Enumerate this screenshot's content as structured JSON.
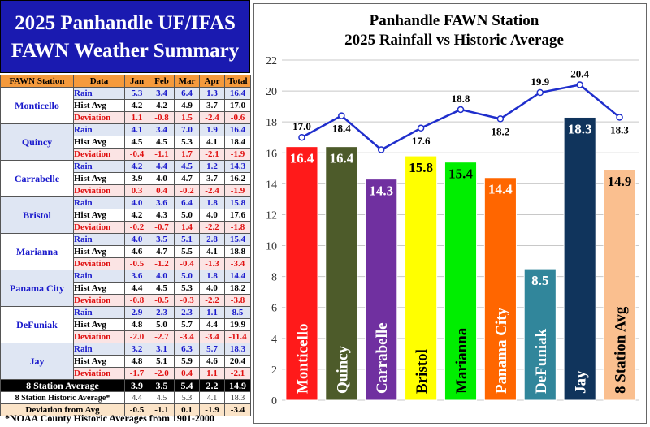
{
  "summary": {
    "title_line1": "2025 Panhandle UF/IFAS",
    "title_line2": "FAWN Weather Summary",
    "columns": [
      "FAWN Station",
      "Data",
      "Jan",
      "Feb",
      "Mar",
      "Apr",
      "Total"
    ],
    "row_labels": [
      "Rain",
      "Hist Avg",
      "Deviation"
    ],
    "stations": [
      {
        "name": "Monticello",
        "rain": [
          "5.3",
          "3.4",
          "6.4",
          "1.3",
          "16.4"
        ],
        "hist": [
          "4.2",
          "4.2",
          "4.9",
          "3.7",
          "17.0"
        ],
        "dev": [
          "1.1",
          "-0.8",
          "1.5",
          "-2.4",
          "-0.6"
        ]
      },
      {
        "name": "Quincy",
        "rain": [
          "4.1",
          "3.4",
          "7.0",
          "1.9",
          "16.4"
        ],
        "hist": [
          "4.5",
          "4.5",
          "5.3",
          "4.1",
          "18.4"
        ],
        "dev": [
          "-0.4",
          "-1.1",
          "1.7",
          "-2.1",
          "-1.9"
        ]
      },
      {
        "name": "Carrabelle",
        "rain": [
          "4.2",
          "4.4",
          "4.5",
          "1.2",
          "14.3"
        ],
        "hist": [
          "3.9",
          "4.0",
          "4.7",
          "3.7",
          "16.2"
        ],
        "dev": [
          "0.3",
          "0.4",
          "-0.2",
          "-2.4",
          "-1.9"
        ]
      },
      {
        "name": "Bristol",
        "rain": [
          "4.0",
          "3.6",
          "6.4",
          "1.8",
          "15.8"
        ],
        "hist": [
          "4.2",
          "4.3",
          "5.0",
          "4.0",
          "17.6"
        ],
        "dev": [
          "-0.2",
          "-0.7",
          "1.4",
          "-2.2",
          "-1.8"
        ]
      },
      {
        "name": "Marianna",
        "rain": [
          "4.0",
          "3.5",
          "5.1",
          "2.8",
          "15.4"
        ],
        "hist": [
          "4.6",
          "4.7",
          "5.5",
          "4.1",
          "18.8"
        ],
        "dev": [
          "-0.5",
          "-1.2",
          "-0.4",
          "-1.3",
          "-3.4"
        ]
      },
      {
        "name": "Panama City",
        "rain": [
          "3.6",
          "4.0",
          "5.0",
          "1.8",
          "14.4"
        ],
        "hist": [
          "4.4",
          "4.5",
          "5.3",
          "4.0",
          "18.2"
        ],
        "dev": [
          "-0.8",
          "-0.5",
          "-0.3",
          "-2.2",
          "-3.8"
        ]
      },
      {
        "name": "DeFuniak",
        "rain": [
          "2.9",
          "2.3",
          "2.3",
          "1.1",
          "8.5"
        ],
        "hist": [
          "4.8",
          "5.0",
          "5.7",
          "4.4",
          "19.9"
        ],
        "dev": [
          "-2.0",
          "-2.7",
          "-3.4",
          "-3.4",
          "-11.4"
        ]
      },
      {
        "name": "Jay",
        "rain": [
          "3.2",
          "3.1",
          "6.3",
          "5.7",
          "18.3"
        ],
        "hist": [
          "4.8",
          "5.1",
          "5.9",
          "4.6",
          "20.4"
        ],
        "dev": [
          "-1.7",
          "-2.0",
          "0.4",
          "1.1",
          "-2.1"
        ]
      }
    ],
    "avg_label": "8 Station Average",
    "avg": [
      "3.9",
      "3.5",
      "5.4",
      "2.2",
      "14.9"
    ],
    "hist_avg_label": "8 Station Historic Average*",
    "hist_avg": [
      "4.4",
      "4.5",
      "5.3",
      "4.1",
      "18.3"
    ],
    "dev_avg_label": "Deviation from Avg",
    "dev_avg": [
      "-0.5",
      "-1.1",
      "0.1",
      "-1.9",
      "-3.4"
    ],
    "footnote": "*NOAA County Historic Averages from 1901-2000"
  },
  "chart_data": {
    "type": "bar",
    "title_line1": "Panhandle FAWN Station",
    "title_line2": "2025 Rainfall vs Historic Average",
    "categories": [
      "Monticello",
      "Quincy",
      "Carrabelle",
      "Bristol",
      "Marianna",
      "Panama City",
      "DeFuniak",
      "Jay",
      "8 Station Avg"
    ],
    "series": [
      {
        "values": [
          16.4,
          16.4,
          14.3,
          15.8,
          15.4,
          14.4,
          8.5,
          18.3,
          14.9
        ]
      },
      {
        "values": [
          17.0,
          18.4,
          16.2,
          17.6,
          18.8,
          18.2,
          19.9,
          20.4,
          18.3
        ]
      }
    ],
    "bar_labels": [
      "16.4",
      "16.4",
      "14.3",
      "15.8",
      "15.4",
      "14.4",
      "8.5",
      "18.3",
      "14.9"
    ],
    "line_labels": [
      "17.0",
      "18.4",
      "",
      "17.6",
      "18.8",
      "18.2",
      "19.9",
      "20.4",
      "18.3"
    ],
    "bar_colors": [
      "#ff1a1a",
      "#4d5b2a",
      "#7030a0",
      "#ffff00",
      "#00ee00",
      "#ff6600",
      "#31869b",
      "#10345c",
      "#fabf8f"
    ],
    "bar_label_colors": [
      "#ffffff",
      "#ffffff",
      "#ffffff",
      "#000000",
      "#000000",
      "#ffffff",
      "#ffffff",
      "#ffffff",
      "#000000"
    ],
    "line_color": "#1f2ecc",
    "y_ticks": [
      0,
      2,
      4,
      6,
      8,
      10,
      12,
      14,
      16,
      18,
      20,
      22
    ],
    "ylim": [
      0,
      22
    ],
    "grid": true
  }
}
